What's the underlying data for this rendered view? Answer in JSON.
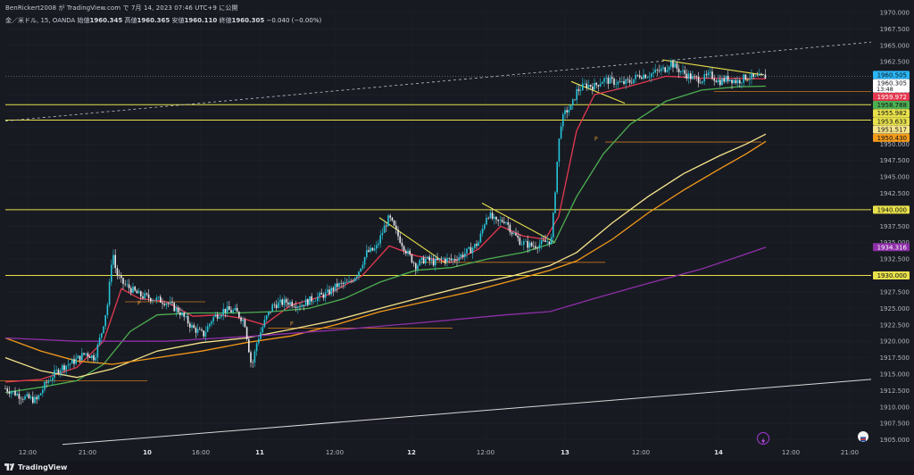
{
  "header": {
    "attribution": "BenRickert2008 が TradingView.com で 7月 14, 2023 07:46 UTC+9 に公開",
    "symbol": "金／米ドル, 15, OANDA",
    "open_label": "始値",
    "open": "1960.345",
    "high_label": "高値",
    "high": "1960.365",
    "low_label": "安値",
    "low": "1960.110",
    "close_label": "終値",
    "close": "1960.305",
    "change": "−0.040 (−0.00%)"
  },
  "footer": {
    "brand": "TradingView"
  },
  "colors": {
    "background": "#181a22",
    "candle_up": "#26c6da",
    "candle_down": "#e8e8ec",
    "ema_red": "#e53950",
    "ema_green": "#4caf50",
    "ema_light_yellow": "#f6e48a",
    "ema_orange": "#f39a1a",
    "ema_purple": "#8e2fa8",
    "level_yellow": "#e8e14a",
    "trend_white": "#d8d8d8"
  },
  "chart_data": {
    "type": "candlestick",
    "timeframe": "15",
    "ylim": [
      1904.0,
      1970.0
    ],
    "y_ticks": [
      "1905.000",
      "1907.500",
      "1910.000",
      "1912.500",
      "1915.000",
      "1917.500",
      "1920.000",
      "1922.500",
      "1925.000",
      "1927.500",
      "1930.000",
      "1932.500",
      "1935.000",
      "1937.500",
      "1940.000",
      "1942.500",
      "1945.000",
      "1947.500",
      "1950.000",
      "1952.500",
      "1955.000",
      "1957.500",
      "1960.000",
      "1962.500",
      "1965.000",
      "1967.500",
      "1970.000"
    ],
    "x_ticks": [
      "12:00",
      "21:00",
      "10",
      "16:00",
      "11",
      "12:00",
      "12",
      "12:00",
      "13",
      "12:00",
      "14",
      "12:00",
      "21:00"
    ],
    "horizontal_levels": [
      {
        "price": 1955.982,
        "label": "1955.982"
      },
      {
        "price": 1953.633,
        "label": "1953.633"
      },
      {
        "price": 1940.0,
        "label": "1940.000"
      },
      {
        "price": 1930.0,
        "label": "1930.000"
      }
    ],
    "price_labels": [
      {
        "value": "1960.505",
        "color": "#29b6f6",
        "text_color": "#10131a"
      },
      {
        "value": "1960.305",
        "color": "#ffffff",
        "text_color": "#10131a",
        "sub": "13:48"
      },
      {
        "value": "1959.972",
        "color": "#e53950",
        "text_color": "#ffffff"
      },
      {
        "value": "1958.788",
        "color": "#4caf50",
        "text_color": "#10131a"
      },
      {
        "value": "1955.982",
        "color": "#e8e14a",
        "text_color": "#10131a"
      },
      {
        "value": "1953.633",
        "color": "#e8e14a",
        "text_color": "#10131a"
      },
      {
        "value": "1951.517",
        "color": "#f6e48a",
        "text_color": "#10131a"
      },
      {
        "value": "1950.430",
        "color": "#f39a1a",
        "text_color": "#10131a"
      },
      {
        "value": "1940.000",
        "color": "#e8e14a",
        "text_color": "#10131a"
      },
      {
        "value": "1934.316",
        "color": "#8e2fa8",
        "text_color": "#ffffff"
      },
      {
        "value": "1930.000",
        "color": "#e8e14a",
        "text_color": "#10131a"
      }
    ],
    "pivot_marks": [
      "P",
      "P",
      "P",
      "P"
    ],
    "price_path": [
      [
        0,
        1912.8
      ],
      [
        20,
        1911.5
      ],
      [
        35,
        1911.0
      ],
      [
        45,
        1913.5
      ],
      [
        60,
        1915.8
      ],
      [
        75,
        1916.8
      ],
      [
        90,
        1918.2
      ],
      [
        100,
        1917.5
      ],
      [
        108,
        1921.5
      ],
      [
        115,
        1926.0
      ],
      [
        120,
        1934.0
      ],
      [
        124,
        1930.5
      ],
      [
        130,
        1929.0
      ],
      [
        140,
        1928.0
      ],
      [
        150,
        1927.0
      ],
      [
        165,
        1926.5
      ],
      [
        180,
        1926.0
      ],
      [
        195,
        1924.5
      ],
      [
        210,
        1922.0
      ],
      [
        222,
        1921.0
      ],
      [
        232,
        1923.5
      ],
      [
        245,
        1924.8
      ],
      [
        258,
        1924.5
      ],
      [
        268,
        1923.0
      ],
      [
        276,
        1916.0
      ],
      [
        282,
        1920.0
      ],
      [
        292,
        1923.5
      ],
      [
        300,
        1925.5
      ],
      [
        315,
        1926.0
      ],
      [
        330,
        1925.5
      ],
      [
        345,
        1926.5
      ],
      [
        360,
        1927.2
      ],
      [
        372,
        1928.5
      ],
      [
        385,
        1928.8
      ],
      [
        395,
        1930.5
      ],
      [
        405,
        1933.5
      ],
      [
        415,
        1934.0
      ],
      [
        425,
        1937.5
      ],
      [
        430,
        1938.8
      ],
      [
        440,
        1936.0
      ],
      [
        450,
        1933.5
      ],
      [
        460,
        1931.5
      ],
      [
        470,
        1932.5
      ],
      [
        480,
        1932.0
      ],
      [
        490,
        1932.5
      ],
      [
        500,
        1932.3
      ],
      [
        510,
        1933.0
      ],
      [
        520,
        1933.8
      ],
      [
        530,
        1935.0
      ],
      [
        540,
        1939.5
      ],
      [
        550,
        1938.0
      ],
      [
        560,
        1938.5
      ],
      [
        568,
        1936.5
      ],
      [
        578,
        1935.0
      ],
      [
        590,
        1934.5
      ],
      [
        600,
        1934.8
      ],
      [
        612,
        1935.5
      ],
      [
        618,
        1947.0
      ],
      [
        622,
        1953.0
      ],
      [
        628,
        1955.0
      ],
      [
        634,
        1955.5
      ],
      [
        640,
        1958.0
      ],
      [
        650,
        1959.0
      ],
      [
        660,
        1958.8
      ],
      [
        670,
        1959.8
      ],
      [
        680,
        1959.5
      ],
      [
        690,
        1959.2
      ],
      [
        700,
        1959.5
      ],
      [
        710,
        1960.5
      ],
      [
        720,
        1960.5
      ],
      [
        730,
        1961.0
      ],
      [
        740,
        1961.5
      ],
      [
        745,
        1962.5
      ],
      [
        752,
        1961.5
      ],
      [
        760,
        1960.8
      ],
      [
        770,
        1960.0
      ],
      [
        780,
        1959.8
      ],
      [
        790,
        1960.5
      ],
      [
        800,
        1959.5
      ],
      [
        810,
        1960.0
      ],
      [
        820,
        1959.5
      ],
      [
        830,
        1960.2
      ],
      [
        840,
        1960.0
      ],
      [
        852,
        1960.3
      ]
    ],
    "series": [
      {
        "name": "",
        "color": "#e53950",
        "points": [
          [
            0,
            1913.8
          ],
          [
            40,
            1914.2
          ],
          [
            80,
            1916.0
          ],
          [
            110,
            1920.0
          ],
          [
            130,
            1928.0
          ],
          [
            150,
            1926.5
          ],
          [
            180,
            1926.0
          ],
          [
            210,
            1923.8
          ],
          [
            240,
            1924.0
          ],
          [
            265,
            1923.5
          ],
          [
            290,
            1922.5
          ],
          [
            320,
            1925.5
          ],
          [
            360,
            1927.0
          ],
          [
            400,
            1930.0
          ],
          [
            430,
            1934.5
          ],
          [
            460,
            1933.0
          ],
          [
            500,
            1932.0
          ],
          [
            530,
            1934.0
          ],
          [
            555,
            1937.5
          ],
          [
            580,
            1936.0
          ],
          [
            605,
            1935.5
          ],
          [
            620,
            1939.0
          ],
          [
            640,
            1952.0
          ],
          [
            660,
            1957.5
          ],
          [
            700,
            1958.8
          ],
          [
            740,
            1960.3
          ],
          [
            780,
            1960.0
          ],
          [
            820,
            1960.0
          ],
          [
            852,
            1959.9
          ]
        ]
      },
      {
        "name": "",
        "color": "#4caf50",
        "points": [
          [
            0,
            1912.2
          ],
          [
            40,
            1913.0
          ],
          [
            80,
            1914.0
          ],
          [
            110,
            1916.5
          ],
          [
            140,
            1921.5
          ],
          [
            170,
            1924.0
          ],
          [
            210,
            1924.3
          ],
          [
            260,
            1924.3
          ],
          [
            300,
            1924.5
          ],
          [
            340,
            1925.0
          ],
          [
            380,
            1926.5
          ],
          [
            420,
            1929.0
          ],
          [
            460,
            1930.8
          ],
          [
            500,
            1931.2
          ],
          [
            540,
            1932.5
          ],
          [
            580,
            1933.5
          ],
          [
            615,
            1935.0
          ],
          [
            640,
            1942.0
          ],
          [
            670,
            1948.5
          ],
          [
            700,
            1953.0
          ],
          [
            740,
            1956.5
          ],
          [
            780,
            1958.2
          ],
          [
            820,
            1958.7
          ],
          [
            852,
            1958.8
          ]
        ]
      },
      {
        "name": "",
        "color": "#f6e48a",
        "points": [
          [
            0,
            1917.5
          ],
          [
            40,
            1915.5
          ],
          [
            80,
            1914.5
          ],
          [
            120,
            1915.8
          ],
          [
            170,
            1918.5
          ],
          [
            220,
            1919.8
          ],
          [
            270,
            1920.5
          ],
          [
            320,
            1921.8
          ],
          [
            370,
            1923.2
          ],
          [
            420,
            1925.0
          ],
          [
            470,
            1926.8
          ],
          [
            520,
            1928.5
          ],
          [
            570,
            1930.0
          ],
          [
            610,
            1931.5
          ],
          [
            640,
            1933.5
          ],
          [
            680,
            1938.0
          ],
          [
            720,
            1942.0
          ],
          [
            760,
            1945.5
          ],
          [
            800,
            1948.2
          ],
          [
            830,
            1950.0
          ],
          [
            852,
            1951.5
          ]
        ]
      },
      {
        "name": "",
        "color": "#f39a1a",
        "points": [
          [
            0,
            1920.5
          ],
          [
            40,
            1918.5
          ],
          [
            80,
            1917.0
          ],
          [
            120,
            1916.5
          ],
          [
            170,
            1917.5
          ],
          [
            220,
            1918.5
          ],
          [
            270,
            1919.8
          ],
          [
            320,
            1920.8
          ],
          [
            370,
            1922.5
          ],
          [
            420,
            1924.5
          ],
          [
            470,
            1926.0
          ],
          [
            520,
            1927.5
          ],
          [
            570,
            1929.3
          ],
          [
            610,
            1930.8
          ],
          [
            640,
            1932.2
          ],
          [
            680,
            1935.5
          ],
          [
            720,
            1939.5
          ],
          [
            760,
            1943.0
          ],
          [
            800,
            1946.2
          ],
          [
            830,
            1948.5
          ],
          [
            852,
            1950.4
          ]
        ]
      },
      {
        "name": "",
        "color": "#8e2fa8",
        "points": [
          [
            0,
            1920.5
          ],
          [
            80,
            1920.0
          ],
          [
            180,
            1920.0
          ],
          [
            280,
            1920.8
          ],
          [
            380,
            1921.8
          ],
          [
            480,
            1923.0
          ],
          [
            560,
            1924.0
          ],
          [
            610,
            1924.5
          ],
          [
            660,
            1926.5
          ],
          [
            720,
            1928.8
          ],
          [
            780,
            1931.0
          ],
          [
            820,
            1932.8
          ],
          [
            852,
            1934.3
          ]
        ]
      }
    ]
  }
}
